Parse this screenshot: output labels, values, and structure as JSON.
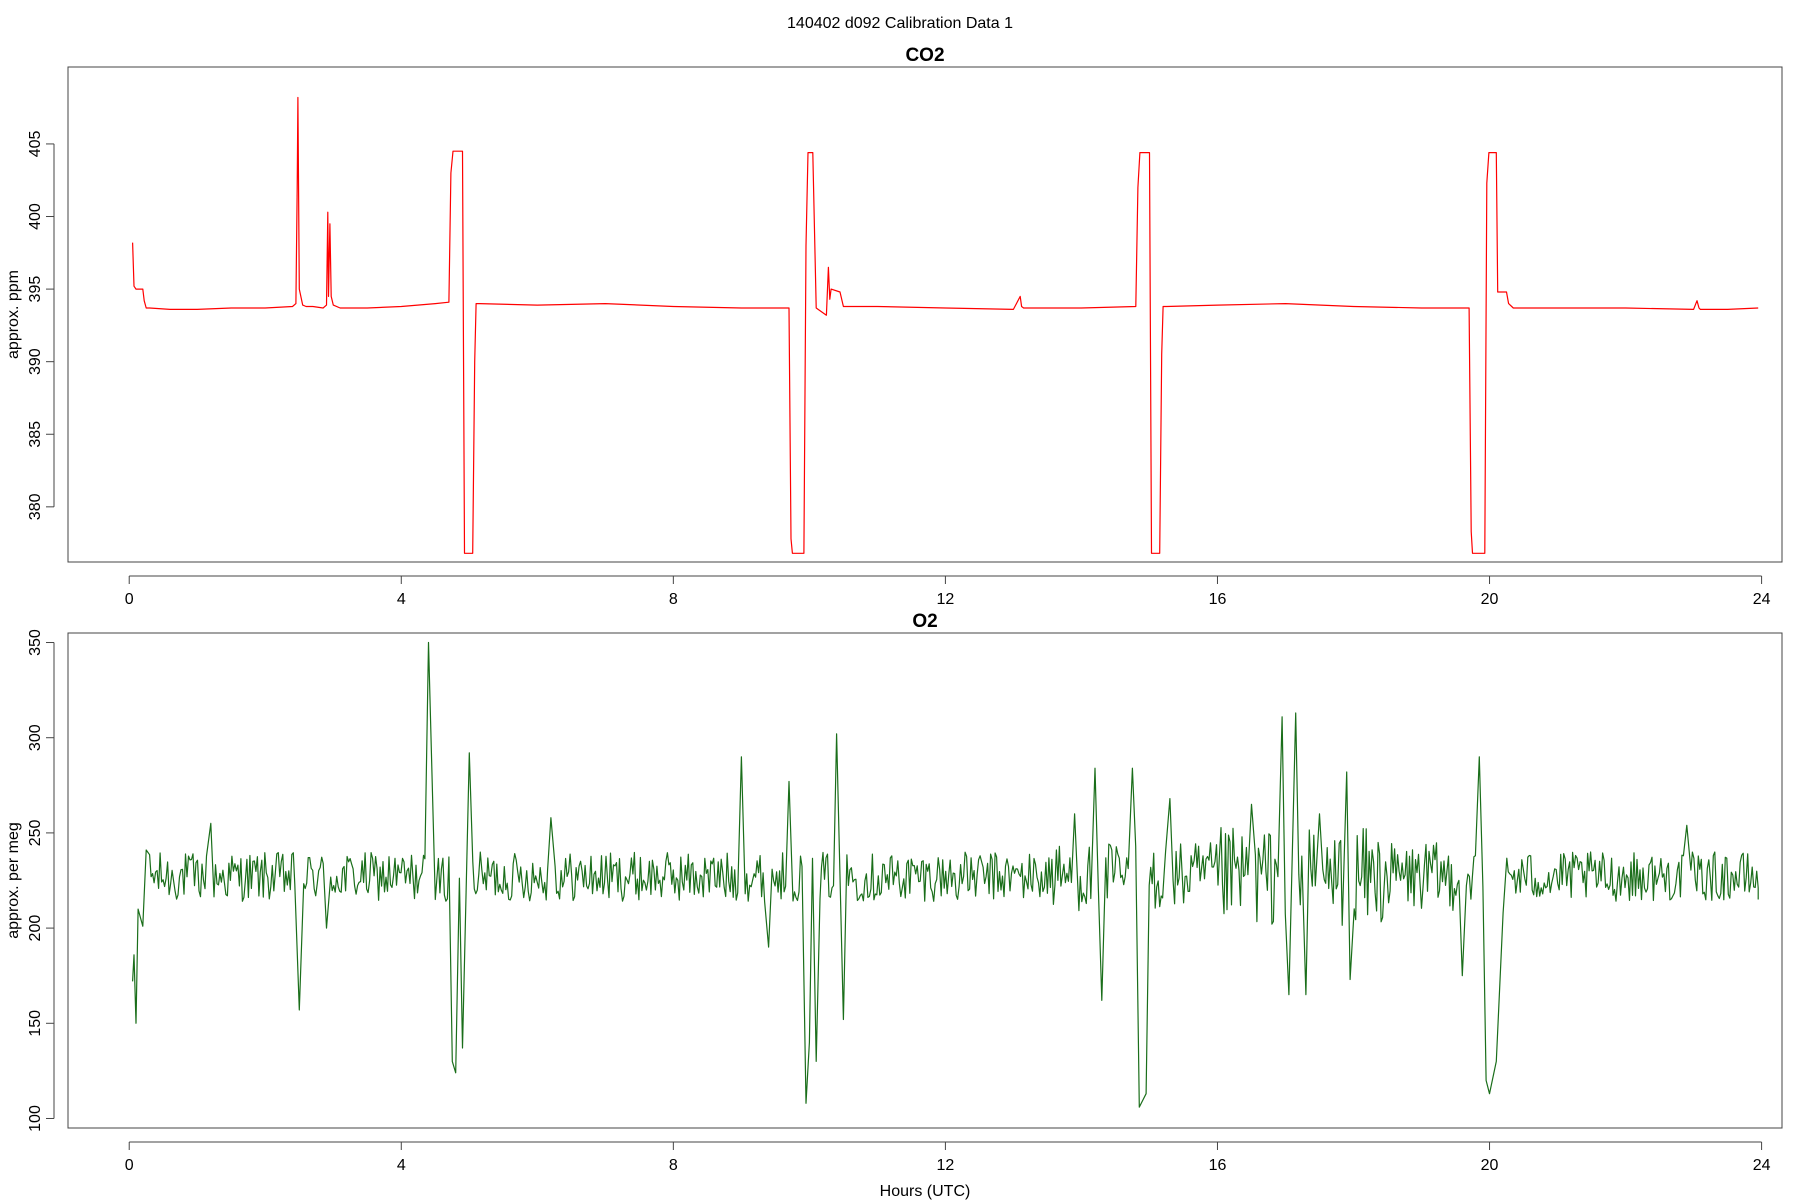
{
  "figure_title": "140402   d092   Calibration Data 1",
  "chart_data": [
    {
      "type": "line",
      "title": "CO2",
      "xlabel": "",
      "ylabel": "approx. ppm",
      "xlim": [
        -0.9,
        24.3
      ],
      "ylim": [
        376.2,
        410.3
      ],
      "xticks": [
        0,
        4,
        8,
        12,
        16,
        20,
        24
      ],
      "yticks": [
        380,
        385,
        390,
        395,
        400,
        405
      ],
      "color": "#ff0000",
      "baseline": 393.7,
      "series": [
        {
          "x": [
            0.05,
            0.07,
            0.1,
            0.2,
            0.22,
            0.25,
            0.3,
            0.6,
            1.0,
            1.5,
            2.0,
            2.4,
            2.45,
            2.47,
            2.48,
            2.5,
            2.55,
            2.6,
            2.7,
            2.85,
            2.9,
            2.92,
            2.93,
            2.95,
            2.97,
            3.0,
            3.1,
            3.5,
            4.0,
            4.5,
            4.7,
            4.73,
            4.76,
            4.9,
            4.93,
            4.97,
            5.05,
            5.08,
            5.1,
            5.15,
            6.0,
            7.0,
            8.0,
            9.0,
            9.7,
            9.73,
            9.75,
            9.78,
            9.92,
            9.95,
            9.98,
            10.05,
            10.1,
            10.25,
            10.28,
            10.3,
            10.32,
            10.45,
            10.5,
            11.0,
            12.0,
            13.0,
            13.1,
            13.12,
            13.15,
            14.0,
            14.8,
            14.83,
            14.86,
            15.0,
            15.03,
            15.07,
            15.15,
            15.18,
            15.2,
            15.25,
            16.0,
            17.0,
            18.0,
            19.0,
            19.7,
            19.73,
            19.75,
            19.78,
            19.93,
            19.96,
            19.99,
            20.1,
            20.12,
            20.25,
            20.28,
            20.35,
            20.5,
            21.0,
            22.0,
            23.0,
            23.05,
            23.08,
            23.1,
            23.5,
            23.95
          ],
          "y": [
            398.2,
            395.2,
            395.0,
            395.0,
            394.2,
            393.7,
            393.7,
            393.6,
            393.6,
            393.7,
            393.7,
            393.8,
            394.0,
            402.0,
            408.2,
            395.0,
            393.9,
            393.8,
            393.8,
            393.7,
            393.9,
            400.3,
            394.5,
            399.5,
            394.5,
            393.9,
            393.7,
            393.7,
            393.8,
            394.0,
            394.1,
            403.0,
            404.5,
            404.5,
            376.8,
            376.8,
            376.8,
            390.0,
            394.0,
            394.0,
            393.9,
            394.0,
            393.8,
            393.7,
            393.7,
            377.8,
            376.8,
            376.8,
            376.8,
            398.0,
            404.4,
            404.4,
            393.7,
            393.2,
            396.5,
            394.3,
            395.0,
            394.8,
            393.8,
            393.8,
            393.7,
            393.6,
            394.5,
            393.8,
            393.7,
            393.7,
            393.8,
            402.0,
            404.4,
            404.4,
            376.8,
            376.8,
            376.8,
            390.5,
            393.8,
            393.8,
            393.9,
            394.0,
            393.8,
            393.7,
            393.7,
            378.3,
            376.8,
            376.8,
            376.8,
            402.3,
            404.4,
            404.4,
            394.8,
            394.8,
            394.0,
            393.7,
            393.7,
            393.7,
            393.7,
            393.6,
            394.2,
            393.7,
            393.6,
            393.6,
            393.7
          ]
        }
      ]
    },
    {
      "type": "line",
      "title": "O2",
      "xlabel": "Hours (UTC)",
      "ylabel": "approx. per meg",
      "xlim": [
        -0.9,
        24.3
      ],
      "ylim": [
        95,
        355
      ],
      "xticks": [
        0,
        4,
        8,
        12,
        16,
        20,
        24
      ],
      "yticks": [
        100,
        150,
        200,
        250,
        300,
        350
      ],
      "color": "#1a6e1a",
      "baseline": 227,
      "events": [
        {
          "x": 0.05,
          "y": 172
        },
        {
          "x": 0.07,
          "y": 186
        },
        {
          "x": 0.1,
          "y": 150
        },
        {
          "x": 0.13,
          "y": 210
        },
        {
          "x": 0.2,
          "y": 201
        },
        {
          "x": 0.25,
          "y": 241
        },
        {
          "x": 1.2,
          "y": 255
        },
        {
          "x": 2.5,
          "y": 157
        },
        {
          "x": 2.9,
          "y": 200
        },
        {
          "x": 4.4,
          "y": 350
        },
        {
          "x": 4.5,
          "y": 215
        },
        {
          "x": 4.75,
          "y": 130
        },
        {
          "x": 4.8,
          "y": 124
        },
        {
          "x": 4.9,
          "y": 137
        },
        {
          "x": 5.0,
          "y": 292
        },
        {
          "x": 6.2,
          "y": 258
        },
        {
          "x": 9.0,
          "y": 290
        },
        {
          "x": 9.4,
          "y": 190
        },
        {
          "x": 9.7,
          "y": 277
        },
        {
          "x": 9.95,
          "y": 108
        },
        {
          "x": 10.0,
          "y": 140
        },
        {
          "x": 10.1,
          "y": 130
        },
        {
          "x": 10.4,
          "y": 302
        },
        {
          "x": 10.5,
          "y": 152
        },
        {
          "x": 13.9,
          "y": 260
        },
        {
          "x": 14.2,
          "y": 284
        },
        {
          "x": 14.3,
          "y": 162
        },
        {
          "x": 14.75,
          "y": 284
        },
        {
          "x": 14.85,
          "y": 106
        },
        {
          "x": 14.95,
          "y": 113
        },
        {
          "x": 15.3,
          "y": 268
        },
        {
          "x": 16.5,
          "y": 265
        },
        {
          "x": 16.95,
          "y": 311
        },
        {
          "x": 17.05,
          "y": 165
        },
        {
          "x": 17.15,
          "y": 313
        },
        {
          "x": 17.3,
          "y": 165
        },
        {
          "x": 17.5,
          "y": 260
        },
        {
          "x": 17.9,
          "y": 282
        },
        {
          "x": 17.95,
          "y": 173
        },
        {
          "x": 19.6,
          "y": 175
        },
        {
          "x": 19.85,
          "y": 290
        },
        {
          "x": 19.95,
          "y": 120
        },
        {
          "x": 20.0,
          "y": 113
        },
        {
          "x": 20.1,
          "y": 130
        },
        {
          "x": 20.2,
          "y": 208
        },
        {
          "x": 22.9,
          "y": 254
        }
      ]
    }
  ]
}
